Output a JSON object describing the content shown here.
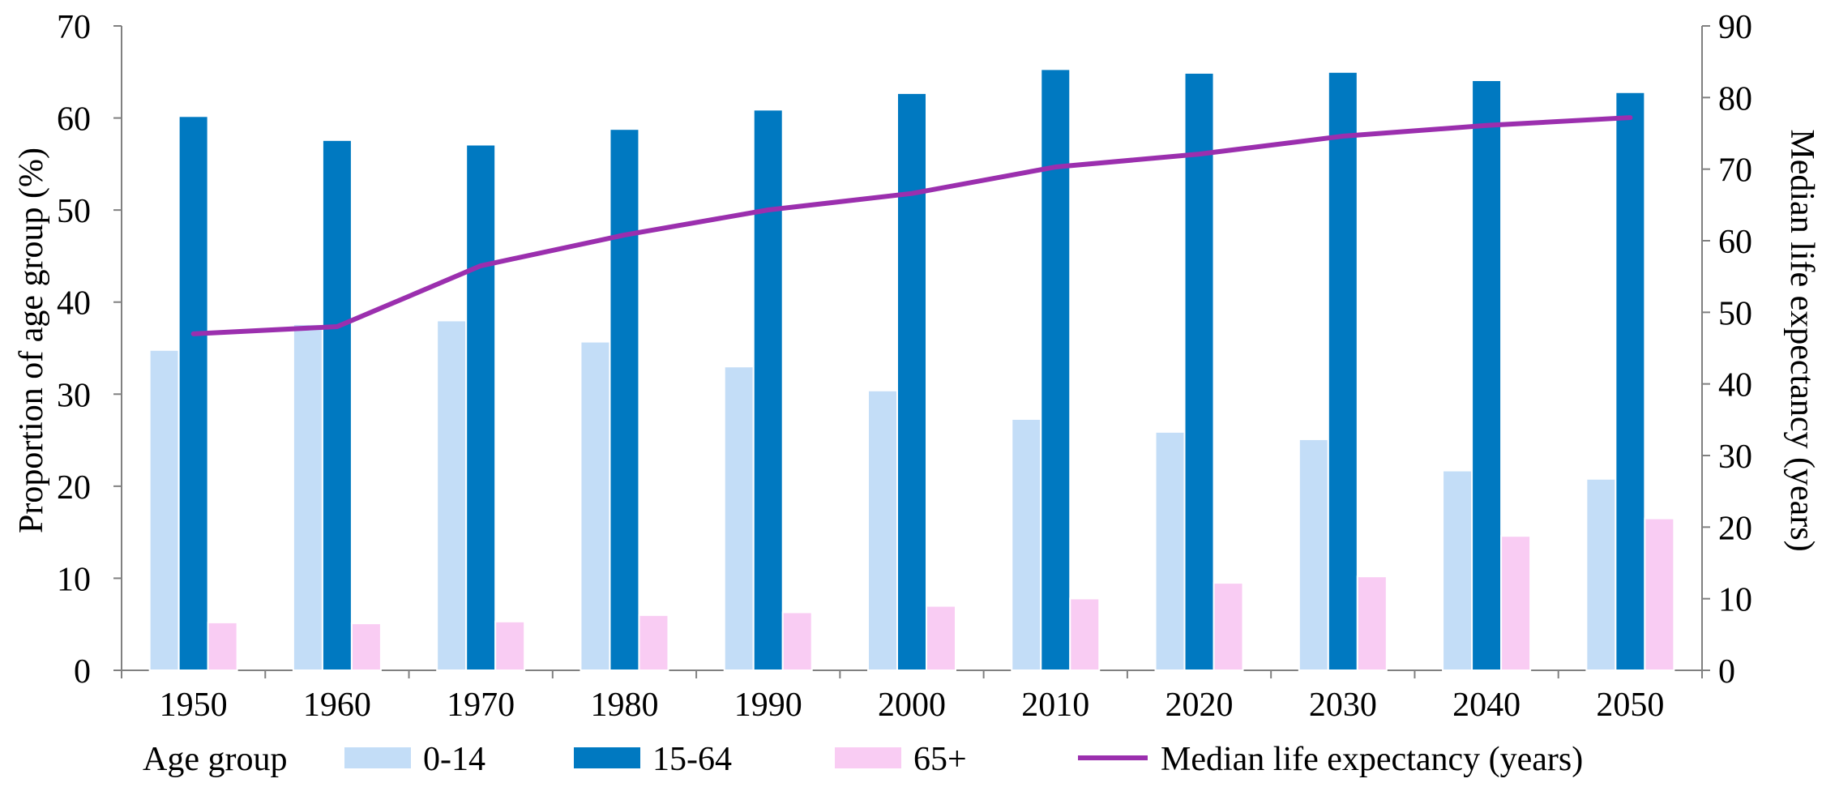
{
  "chart_data": {
    "type": "bar",
    "categories": [
      "1950",
      "1960",
      "1970",
      "1980",
      "1990",
      "2000",
      "2010",
      "2020",
      "2030",
      "2040",
      "2050"
    ],
    "series": [
      {
        "name": "0-14",
        "kind": "bar",
        "color": "#c3ddf7",
        "values": [
          34.8,
          37.6,
          38.0,
          35.7,
          33.0,
          30.4,
          27.3,
          25.9,
          25.1,
          21.7,
          20.8
        ]
      },
      {
        "name": "15-64",
        "kind": "bar",
        "color": "#0079c1",
        "values": [
          60.2,
          57.6,
          57.1,
          58.8,
          60.9,
          62.7,
          65.3,
          64.9,
          65.0,
          64.1,
          62.8
        ]
      },
      {
        "name": "65+",
        "kind": "bar",
        "color": "#f9ccf3",
        "values": [
          5.2,
          5.1,
          5.3,
          6.0,
          6.3,
          7.0,
          7.8,
          9.5,
          10.2,
          14.6,
          16.5
        ]
      },
      {
        "name": "Median life expectancy (years)",
        "kind": "line",
        "axis": "right",
        "color": "#9b2fae",
        "values": [
          47.0,
          48.0,
          56.5,
          60.8,
          64.3,
          66.6,
          70.3,
          72.1,
          74.6,
          76.1,
          77.2
        ]
      }
    ],
    "ylabel": "Proportion of age group (%)",
    "y2label": "Median life expectancy (years)",
    "ylim": [
      0,
      70
    ],
    "y2lim": [
      0,
      90
    ],
    "yticks": [
      "0",
      "10",
      "20",
      "30",
      "40",
      "50",
      "60",
      "70"
    ],
    "y2ticks": [
      "0",
      "10",
      "20",
      "30",
      "40",
      "50",
      "60",
      "70",
      "80",
      "90"
    ],
    "legend": {
      "title": "Age group",
      "entries": [
        "0-14",
        "15-64",
        "65+",
        "Median life expectancy (years)"
      ],
      "placement": "bottom"
    },
    "grid": false
  }
}
